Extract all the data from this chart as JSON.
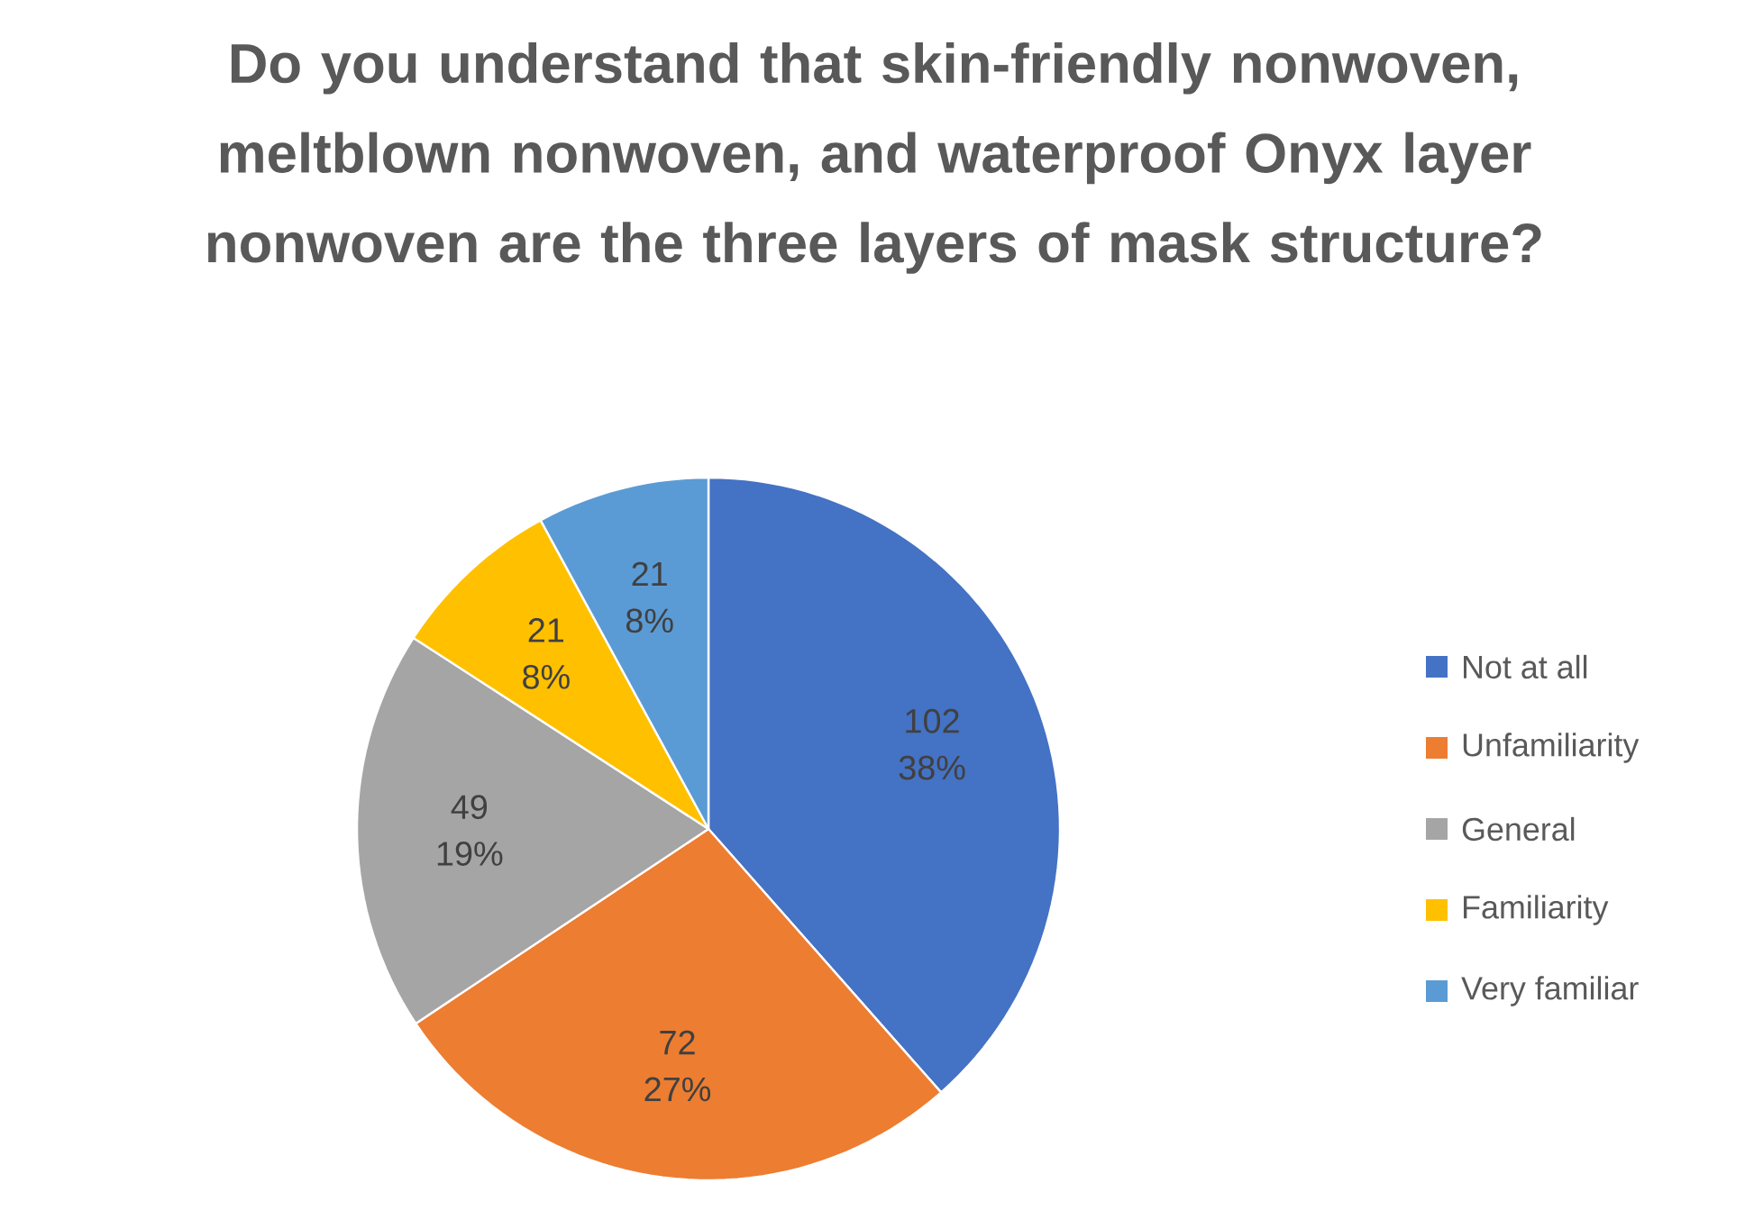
{
  "chart_data": {
    "type": "pie",
    "title": "Do you understand that skin-friendly nonwoven, meltblown nonwoven, and waterproof Onyx layer nonwoven are the three layers of mask structure?",
    "categories": [
      "Not at all",
      "Unfamiliarity",
      "General",
      "Familiarity",
      "Very familiar"
    ],
    "values": [
      102,
      72,
      49,
      21,
      21
    ],
    "colors": [
      "#4472c4",
      "#ed7d31",
      "#a5a5a5",
      "#ffc000",
      "#5b9bd5"
    ],
    "value_labels": [
      "102 38%",
      "72 27%",
      "49 19%",
      "21 8%",
      "21 8%"
    ],
    "legend": "right"
  }
}
